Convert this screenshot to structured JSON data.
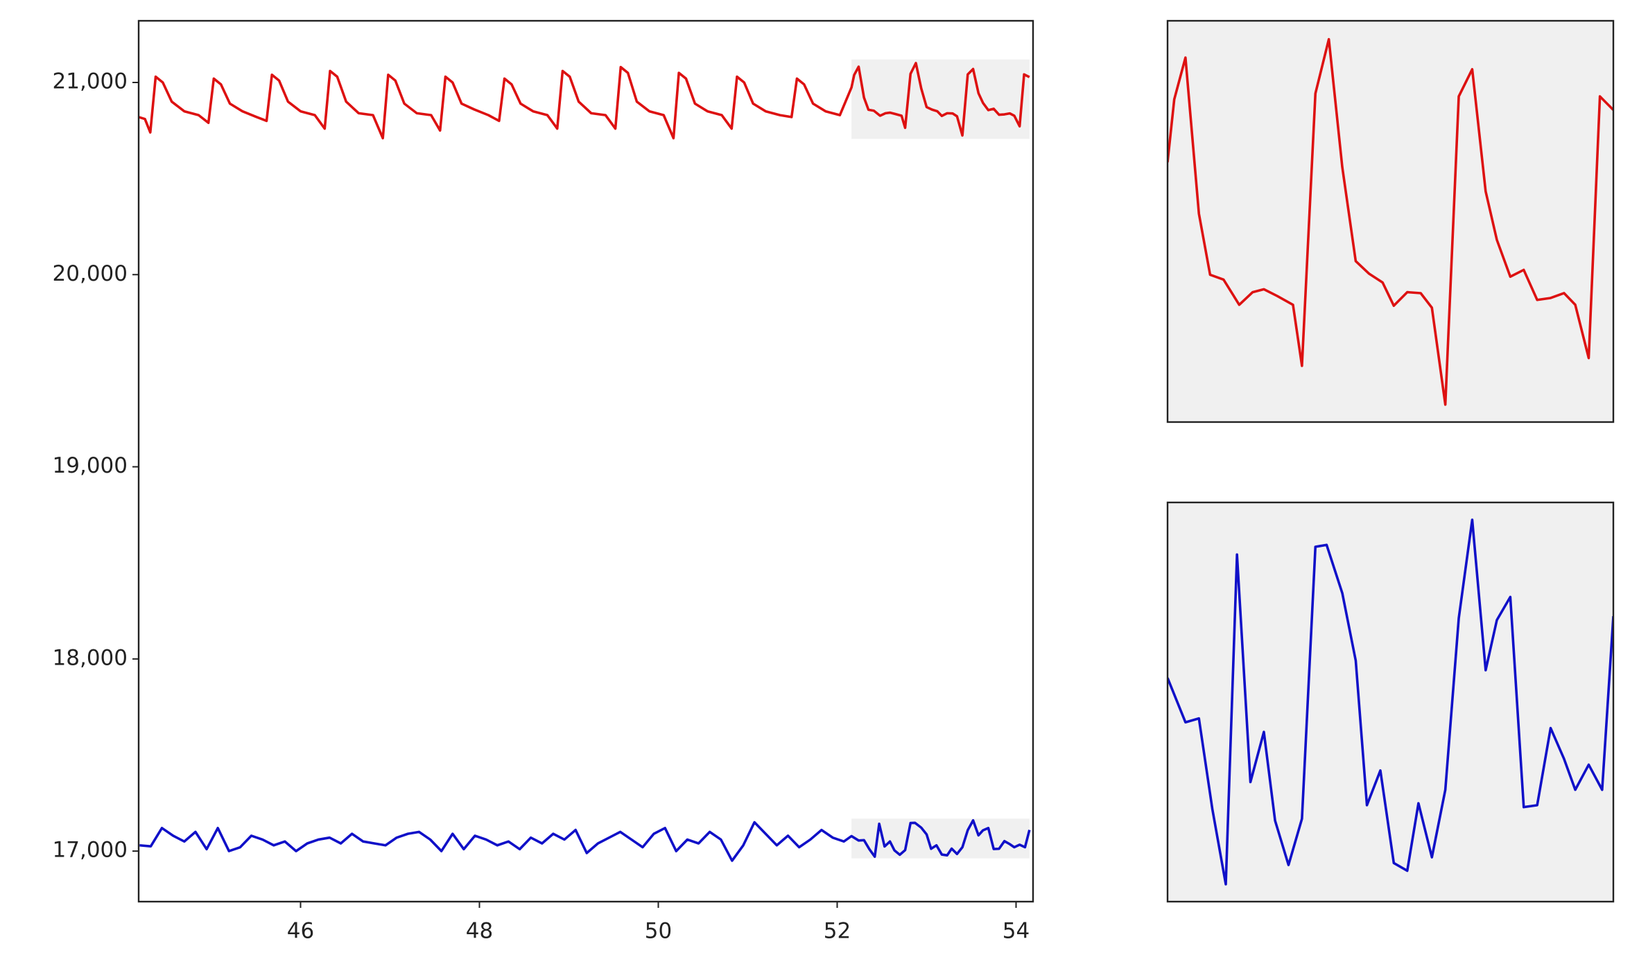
{
  "chart_data": [
    {
      "type": "line",
      "xlim": [
        44.19,
        54.19
      ],
      "ylim": [
        16737,
        21321
      ],
      "xticks": [
        46,
        48,
        50,
        52,
        54
      ],
      "yticks": [
        {
          "value": 17000,
          "label": "17,000"
        },
        {
          "value": 18000,
          "label": "18,000"
        },
        {
          "value": 19000,
          "label": "19,000"
        },
        {
          "value": 20000,
          "label": "20,000"
        },
        {
          "value": 21000,
          "label": "21,000"
        }
      ],
      "series": [
        {
          "color": "#dd1111",
          "x": [
            44.19,
            44.26,
            44.32,
            44.38,
            44.46,
            44.56,
            44.7,
            44.86,
            44.97,
            45.03,
            45.11,
            45.21,
            45.35,
            45.51,
            45.62,
            45.68,
            45.76,
            45.86,
            46.0,
            46.16,
            46.27,
            46.33,
            46.41,
            46.51,
            46.65,
            46.81,
            46.92,
            46.98,
            47.06,
            47.16,
            47.3,
            47.46,
            47.56,
            47.62,
            47.7,
            47.8,
            47.94,
            48.1,
            48.22,
            48.28,
            48.36,
            48.46,
            48.6,
            48.76,
            48.87,
            48.93,
            49.01,
            49.11,
            49.25,
            49.41,
            49.52,
            49.58,
            49.66,
            49.76,
            49.9,
            50.06,
            50.17,
            50.23,
            50.31,
            50.41,
            50.55,
            50.71,
            50.82,
            50.88,
            50.96,
            51.06,
            51.2,
            51.36,
            51.49,
            51.55,
            51.63,
            51.73,
            51.87,
            52.03,
            52.16,
            52.19,
            52.24,
            52.3,
            52.35,
            52.41,
            52.48,
            52.54,
            52.59,
            52.65,
            52.72,
            52.76,
            52.82,
            52.88,
            52.94,
            53.0,
            53.06,
            53.12,
            53.17,
            53.23,
            53.29,
            53.34,
            53.4,
            53.46,
            53.52,
            53.58,
            53.63,
            53.69,
            53.75,
            53.81,
            53.87,
            53.93,
            53.98,
            54.04,
            54.09,
            54.15
          ],
          "values": [
            20820,
            20810,
            20740,
            21030,
            21000,
            20900,
            20850,
            20830,
            20790,
            21020,
            20990,
            20890,
            20850,
            20820,
            20800,
            21040,
            21010,
            20900,
            20850,
            20830,
            20760,
            21060,
            21030,
            20900,
            20840,
            20830,
            20710,
            21040,
            21010,
            20890,
            20840,
            20830,
            20750,
            21030,
            21000,
            20890,
            20860,
            20830,
            20800,
            21020,
            20990,
            20890,
            20850,
            20830,
            20760,
            21060,
            21030,
            20900,
            20840,
            20830,
            20760,
            21080,
            21050,
            20900,
            20850,
            20830,
            20710,
            21050,
            21020,
            20890,
            20850,
            20830,
            20760,
            21030,
            21000,
            20890,
            20850,
            20830,
            20820,
            21020,
            20990,
            20890,
            20850,
            20830,
            20974,
            21039,
            21082,
            20921,
            20858,
            20853,
            20827,
            20840,
            20843,
            20836,
            20827,
            20764,
            21045,
            21101,
            20969,
            20872,
            20859,
            20850,
            20826,
            20840,
            20839,
            20824,
            20724,
            21042,
            21070,
            20944,
            20894,
            20856,
            20863,
            20832,
            20834,
            20839,
            20827,
            20772,
            21042,
            21028
          ]
        },
        {
          "color": "#1010c8",
          "x": [
            44.2,
            44.325,
            44.45,
            44.575,
            44.7,
            44.825,
            44.95,
            45.075,
            45.2,
            45.325,
            45.45,
            45.575,
            45.7,
            45.825,
            45.95,
            46.075,
            46.2,
            46.325,
            46.45,
            46.575,
            46.7,
            46.825,
            46.95,
            47.075,
            47.2,
            47.325,
            47.45,
            47.575,
            47.7,
            47.825,
            47.95,
            48.075,
            48.2,
            48.325,
            48.45,
            48.575,
            48.7,
            48.825,
            48.95,
            49.075,
            49.2,
            49.325,
            49.45,
            49.575,
            49.7,
            49.825,
            49.95,
            50.075,
            50.2,
            50.325,
            50.45,
            50.575,
            50.7,
            50.825,
            50.95,
            51.075,
            51.2,
            51.325,
            51.45,
            51.575,
            51.7,
            51.825,
            51.95,
            52.075,
            52.16,
            52.24,
            52.3,
            52.36,
            52.42,
            52.47,
            52.53,
            52.59,
            52.64,
            52.7,
            52.76,
            52.82,
            52.87,
            52.94,
            53.0,
            53.05,
            53.11,
            53.17,
            53.23,
            53.28,
            53.34,
            53.4,
            53.46,
            53.52,
            53.58,
            53.63,
            53.69,
            53.75,
            53.81,
            53.87,
            53.93,
            53.98,
            54.04,
            54.1,
            54.15
          ],
          "values": [
            17030,
            17025,
            17120,
            17080,
            17050,
            17100,
            17010,
            17120,
            17000,
            17020,
            17080,
            17060,
            17030,
            17050,
            17000,
            17040,
            17060,
            17070,
            17040,
            17090,
            17050,
            17040,
            17030,
            17070,
            17090,
            17100,
            17060,
            17000,
            17090,
            17010,
            17080,
            17060,
            17030,
            17050,
            17010,
            17070,
            17040,
            17090,
            17060,
            17110,
            16990,
            17040,
            17070,
            17100,
            17060,
            17020,
            17090,
            17120,
            17000,
            17060,
            17040,
            17100,
            17060,
            16950,
            17030,
            17150,
            17090,
            17030,
            17080,
            17020,
            17060,
            17110,
            17070,
            17050,
            17078,
            17055,
            17057,
            17010,
            16971,
            17142,
            17024,
            17050,
            17004,
            16981,
            17005,
            17146,
            17147,
            17122,
            17087,
            17012,
            17030,
            16982,
            16978,
            17013,
            16985,
            17020,
            17109,
            17160,
            17082,
            17108,
            17120,
            17011,
            17012,
            17052,
            17036,
            17020,
            17033,
            17020,
            17110
          ]
        }
      ]
    },
    {
      "type": "line",
      "background": "#f0f0f0",
      "xlim": [
        52.16,
        54.15
      ],
      "ylim": [
        20706,
        21120
      ],
      "series": [
        {
          "color": "#dd1111",
          "x": [
            52.16,
            52.19,
            52.24,
            52.3,
            52.35,
            52.41,
            52.48,
            52.54,
            52.59,
            52.65,
            52.72,
            52.76,
            52.82,
            52.88,
            52.94,
            53.0,
            53.06,
            53.12,
            53.17,
            53.23,
            53.29,
            53.34,
            53.4,
            53.46,
            53.52,
            53.58,
            53.63,
            53.69,
            53.75,
            53.81,
            53.87,
            53.93,
            53.98,
            54.04,
            54.09,
            54.15
          ],
          "values": [
            20974,
            21039,
            21082,
            20921,
            20858,
            20853,
            20827,
            20840,
            20843,
            20836,
            20827,
            20764,
            21045,
            21101,
            20969,
            20872,
            20859,
            20850,
            20826,
            20840,
            20839,
            20824,
            20724,
            21042,
            21070,
            20944,
            20894,
            20856,
            20863,
            20832,
            20834,
            20839,
            20827,
            20772,
            21042,
            21028
          ]
        }
      ]
    },
    {
      "type": "line",
      "background": "#f0f0f0",
      "xlim": [
        52.16,
        54.15
      ],
      "ylim": [
        16962,
        17169
      ],
      "series": [
        {
          "color": "#1010c8",
          "x": [
            52.16,
            52.24,
            52.3,
            52.36,
            52.42,
            52.47,
            52.53,
            52.59,
            52.64,
            52.7,
            52.76,
            52.82,
            52.87,
            52.94,
            53.0,
            53.05,
            53.11,
            53.17,
            53.23,
            53.28,
            53.34,
            53.4,
            53.46,
            53.52,
            53.58,
            53.63,
            53.69,
            53.75,
            53.81,
            53.87,
            53.93,
            53.98,
            54.04,
            54.1,
            54.15
          ],
          "values": [
            17078,
            17055,
            17057,
            17010,
            16971,
            17142,
            17024,
            17050,
            17004,
            16981,
            17005,
            17146,
            17147,
            17122,
            17087,
            17012,
            17030,
            16982,
            16978,
            17013,
            16985,
            17020,
            17109,
            17160,
            17082,
            17108,
            17120,
            17011,
            17012,
            17052,
            17036,
            17020,
            17033,
            17020,
            17110
          ]
        }
      ]
    }
  ]
}
